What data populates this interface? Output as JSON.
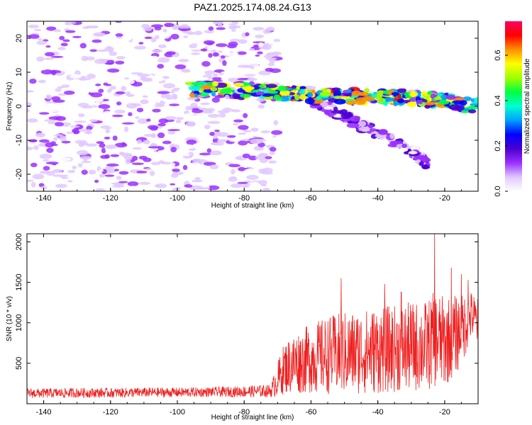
{
  "chart_data": [
    {
      "type": "heatmap",
      "title": "PAZ1.2025.174.08.24.G13",
      "xlabel": "Height of straight line (km)",
      "ylabel": "Frequency (Hz)",
      "xlim": [
        -145,
        -10
      ],
      "ylim": [
        -25,
        25
      ],
      "x_ticks": [
        -140,
        -120,
        -100,
        -80,
        -60,
        -40,
        -20
      ],
      "y_ticks": [
        -20,
        -10,
        0,
        10,
        20
      ],
      "colorbar": {
        "label": "Normalized spectral amplitude",
        "range": [
          0,
          0.75
        ],
        "ticks": [
          0.0,
          0.2,
          0.4,
          0.6
        ],
        "colors": [
          "#ffffff",
          "#e0c8ff",
          "#9a30ff",
          "#4b00d0",
          "#0000ff",
          "#00a0ff",
          "#00ffd0",
          "#00ff40",
          "#a0ff00",
          "#ffff00",
          "#ff9000",
          "#ff0000",
          "#ff0060"
        ]
      },
      "features": [
        {
          "name": "noise",
          "x": [
            -145,
            -70
          ],
          "y": [
            -25,
            25
          ],
          "amplitude": 0.1
        },
        {
          "name": "main-branch",
          "points": [
            [
              -96,
              5
            ],
            [
              -80,
              4.5
            ],
            [
              -70,
              4
            ],
            [
              -60,
              3.5
            ],
            [
              -50,
              3
            ],
            [
              -40,
              3
            ],
            [
              -30,
              2.5
            ],
            [
              -20,
              1.5
            ],
            [
              -10,
              0
            ]
          ],
          "amplitude": 0.7
        },
        {
          "name": "lower-branch",
          "points": [
            [
              -60,
              2
            ],
            [
              -50,
              -3
            ],
            [
              -40,
              -8
            ],
            [
              -30,
              -13
            ],
            [
              -25,
              -17
            ]
          ],
          "amplitude": 0.25
        }
      ]
    },
    {
      "type": "line",
      "xlabel": "Height of straight line (km)",
      "ylabel": "SNR (10 * v/v)",
      "xlim": [
        -145,
        -10
      ],
      "ylim": [
        0,
        2100
      ],
      "x_ticks": [
        -140,
        -120,
        -100,
        -80,
        -60,
        -40,
        -20
      ],
      "y_ticks": [
        500,
        1000,
        1500,
        2000
      ],
      "line_color": "#ee2020",
      "series": [
        {
          "x": [
            -145,
            -140,
            -130,
            -120,
            -110,
            -100,
            -90,
            -80,
            -72,
            -70,
            -68,
            -65,
            -60,
            -55,
            -50,
            -45,
            -40,
            -35,
            -30,
            -25,
            -23,
            -20,
            -18,
            -15,
            -12,
            -10
          ],
          "mean": [
            130,
            130,
            135,
            135,
            140,
            140,
            145,
            150,
            160,
            300,
            440,
            500,
            560,
            600,
            620,
            640,
            660,
            680,
            700,
            720,
            800,
            760,
            820,
            900,
            1100,
            1000
          ],
          "amp": [
            60,
            60,
            60,
            60,
            60,
            60,
            60,
            70,
            80,
            220,
            320,
            380,
            430,
            480,
            520,
            520,
            540,
            540,
            560,
            560,
            600,
            560,
            520,
            450,
            300,
            300
          ],
          "peaks": [
            [
              -51,
              1550
            ],
            [
              -38,
              1480
            ],
            [
              -33,
              1380
            ],
            [
              -23,
              2100
            ],
            [
              -18,
              1680
            ],
            [
              -15,
              1600
            ],
            [
              -13,
              1530
            ]
          ]
        }
      ]
    }
  ]
}
